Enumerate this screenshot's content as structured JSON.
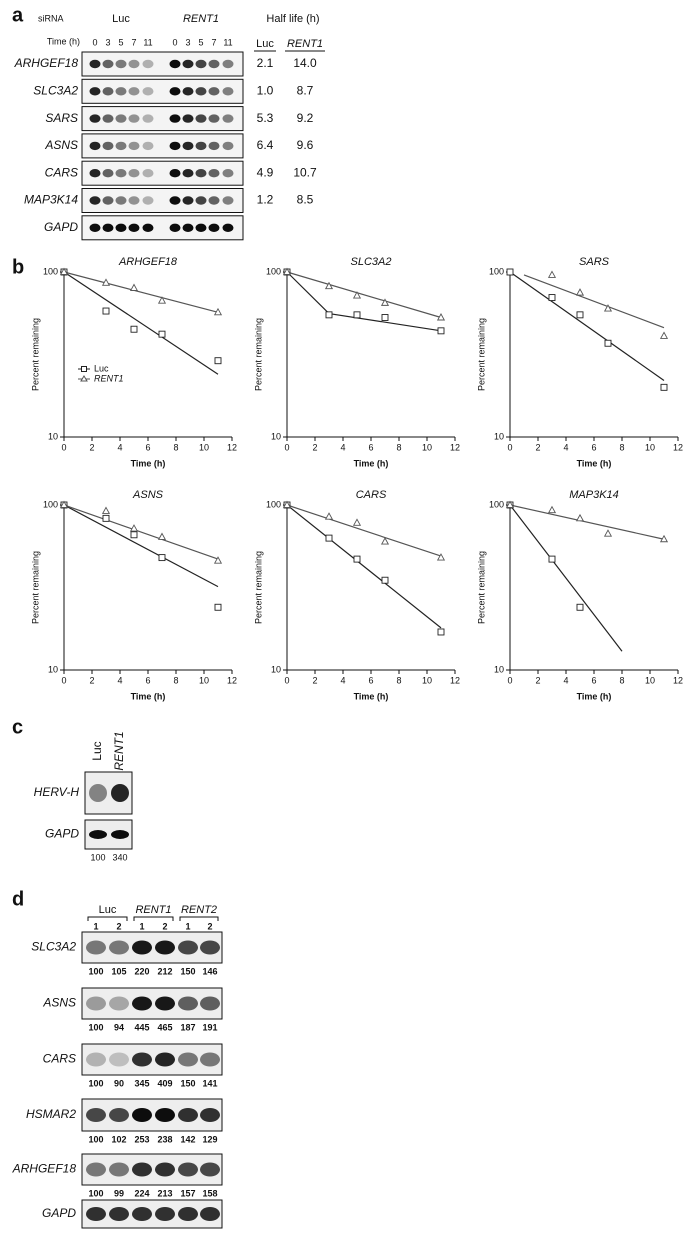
{
  "panel_a": {
    "label": "a",
    "siRNA_label": "siRNA",
    "time_label": "Time (h)",
    "groups": [
      "Luc",
      "RENT1"
    ],
    "times": [
      "0",
      "3",
      "5",
      "7",
      "11"
    ],
    "half_life_title": "Half life (h)",
    "half_life_columns": [
      "Luc",
      "RENT1"
    ],
    "rows": [
      {
        "gene": "ARHGEF18",
        "half_life": [
          "2.1",
          "14.0"
        ]
      },
      {
        "gene": "SLC3A2",
        "half_life": [
          "1.0",
          "8.7"
        ]
      },
      {
        "gene": "SARS",
        "half_life": [
          "5.3",
          "9.2"
        ]
      },
      {
        "gene": "ASNS",
        "half_life": [
          "6.4",
          "9.6"
        ]
      },
      {
        "gene": "CARS",
        "half_life": [
          "4.9",
          "10.7"
        ]
      },
      {
        "gene": "MAP3K14",
        "half_life": [
          "1.2",
          "8.5"
        ]
      },
      {
        "gene": "GAPD"
      }
    ]
  },
  "panel_b": {
    "label": "b"
  },
  "chart_data": [
    {
      "type": "line",
      "title": "ARHGEF18",
      "x_label": "Time (h)",
      "y_label": "Percent remaining",
      "log_y": true,
      "xlim": [
        0,
        12
      ],
      "ylim": [
        10,
        100
      ],
      "xticks": [
        0,
        2,
        4,
        6,
        8,
        10,
        12
      ],
      "yticks": [
        10,
        100
      ],
      "legend": "left",
      "series": [
        {
          "name": "Luc",
          "marker": "square",
          "color": "#222",
          "x": [
            0,
            3,
            5,
            7,
            11
          ],
          "values": [
            100,
            58,
            45,
            42,
            29
          ],
          "fit_x": [
            0,
            11
          ],
          "fit_values": [
            100,
            24
          ]
        },
        {
          "name": "RENT1",
          "marker": "triangle",
          "color": "#555",
          "x": [
            0,
            3,
            5,
            7,
            11
          ],
          "values": [
            100,
            86,
            80,
            67,
            57
          ],
          "fit_x": [
            0,
            11
          ],
          "fit_values": [
            100,
            57
          ]
        }
      ]
    },
    {
      "type": "line",
      "title": "SLC3A2",
      "x_label": "Time (h)",
      "y_label": "Percent remaining",
      "log_y": true,
      "xlim": [
        0,
        12
      ],
      "ylim": [
        10,
        100
      ],
      "xticks": [
        0,
        2,
        4,
        6,
        8,
        10,
        12
      ],
      "yticks": [
        10,
        100
      ],
      "series": [
        {
          "marker": "square",
          "color": "#222",
          "x": [
            0,
            3,
            5,
            7,
            11
          ],
          "values": [
            100,
            55,
            55,
            53,
            44
          ],
          "fit_x": [
            0,
            3,
            11
          ],
          "fit_values": [
            100,
            56,
            44
          ]
        },
        {
          "marker": "triangle",
          "color": "#555",
          "x": [
            0,
            3,
            5,
            7,
            11
          ],
          "values": [
            100,
            82,
            72,
            65,
            53
          ],
          "fit_x": [
            0,
            11
          ],
          "fit_values": [
            100,
            53
          ]
        }
      ]
    },
    {
      "type": "line",
      "title": "SARS",
      "x_label": "Time (h)",
      "y_label": "Percent remaining",
      "log_y": true,
      "xlim": [
        0,
        12
      ],
      "ylim": [
        10,
        100
      ],
      "xticks": [
        0,
        2,
        4,
        6,
        8,
        10,
        12
      ],
      "yticks": [
        10,
        100
      ],
      "series": [
        {
          "marker": "square",
          "color": "#222",
          "x": [
            0,
            3,
            5,
            7,
            11
          ],
          "values": [
            100,
            70,
            55,
            37,
            20
          ],
          "fit_x": [
            0,
            11
          ],
          "fit_values": [
            100,
            22
          ]
        },
        {
          "marker": "triangle",
          "color": "#555",
          "x": [
            3,
            5,
            7,
            11
          ],
          "values": [
            96,
            75,
            60,
            41
          ],
          "fit_x": [
            1,
            11
          ],
          "fit_values": [
            96,
            46
          ]
        }
      ]
    },
    {
      "type": "line",
      "title": "ASNS",
      "x_label": "Time (h)",
      "y_label": "Percent remaining",
      "log_y": true,
      "xlim": [
        0,
        12
      ],
      "ylim": [
        10,
        100
      ],
      "xticks": [
        0,
        2,
        4,
        6,
        8,
        10,
        12
      ],
      "yticks": [
        10,
        100
      ],
      "series": [
        {
          "marker": "square",
          "color": "#222",
          "x": [
            0,
            3,
            5,
            7,
            11
          ],
          "values": [
            100,
            83,
            66,
            48,
            24
          ],
          "fit_x": [
            0,
            11
          ],
          "fit_values": [
            100,
            32
          ]
        },
        {
          "marker": "triangle",
          "color": "#555",
          "x": [
            0,
            3,
            5,
            7,
            11
          ],
          "values": [
            100,
            92,
            72,
            64,
            46
          ],
          "fit_x": [
            0,
            11
          ],
          "fit_values": [
            100,
            47
          ]
        }
      ]
    },
    {
      "type": "line",
      "title": "CARS",
      "x_label": "Time (h)",
      "y_label": "Percent remaining",
      "log_y": true,
      "xlim": [
        0,
        12
      ],
      "ylim": [
        10,
        100
      ],
      "xticks": [
        0,
        2,
        4,
        6,
        8,
        10,
        12
      ],
      "yticks": [
        10,
        100
      ],
      "series": [
        {
          "marker": "square",
          "color": "#222",
          "x": [
            0,
            3,
            5,
            7,
            11
          ],
          "values": [
            100,
            63,
            47,
            35,
            17
          ],
          "fit_x": [
            0,
            11
          ],
          "fit_values": [
            100,
            18
          ]
        },
        {
          "marker": "triangle",
          "color": "#555",
          "x": [
            0,
            3,
            5,
            7,
            11
          ],
          "values": [
            100,
            85,
            78,
            60,
            48
          ],
          "fit_x": [
            0,
            11
          ],
          "fit_values": [
            100,
            49
          ]
        }
      ]
    },
    {
      "type": "line",
      "title": "MAP3K14",
      "x_label": "Time (h)",
      "y_label": "Percent remaining",
      "log_y": true,
      "xlim": [
        0,
        12
      ],
      "ylim": [
        10,
        100
      ],
      "xticks": [
        0,
        2,
        4,
        6,
        8,
        10,
        12
      ],
      "yticks": [
        10,
        100
      ],
      "series": [
        {
          "marker": "square",
          "color": "#222",
          "x": [
            0,
            3,
            5
          ],
          "values": [
            100,
            47,
            24
          ],
          "fit_x": [
            0,
            8
          ],
          "fit_values": [
            100,
            13
          ]
        },
        {
          "marker": "triangle",
          "color": "#555",
          "x": [
            0,
            3,
            5,
            7,
            11
          ],
          "values": [
            100,
            93,
            83,
            67,
            62
          ],
          "fit_x": [
            0,
            11
          ],
          "fit_values": [
            100,
            62
          ]
        }
      ]
    }
  ],
  "panel_c": {
    "label": "c",
    "lanes": [
      "Luc",
      "RENT1"
    ],
    "rows": [
      {
        "gene": "HERV-H"
      },
      {
        "gene": "GAPD"
      }
    ],
    "quantification": [
      "100",
      "340"
    ]
  },
  "panel_d": {
    "label": "d",
    "groups": [
      "Luc",
      "RENT1",
      "RENT2"
    ],
    "lanes": [
      "1",
      "2",
      "1",
      "2",
      "1",
      "2"
    ],
    "rows": [
      {
        "gene": "SLC3A2",
        "values": [
          "100",
          "105",
          "220",
          "212",
          "150",
          "146"
        ]
      },
      {
        "gene": "ASNS",
        "values": [
          "100",
          "94",
          "445",
          "465",
          "187",
          "191"
        ]
      },
      {
        "gene": "CARS",
        "values": [
          "100",
          "90",
          "345",
          "409",
          "150",
          "141"
        ]
      },
      {
        "gene": "HSMAR2",
        "values": [
          "100",
          "102",
          "253",
          "238",
          "142",
          "129"
        ]
      },
      {
        "gene": "ARHGEF18",
        "values": [
          "100",
          "99",
          "224",
          "213",
          "157",
          "158"
        ]
      },
      {
        "gene": "GAPD"
      }
    ]
  }
}
